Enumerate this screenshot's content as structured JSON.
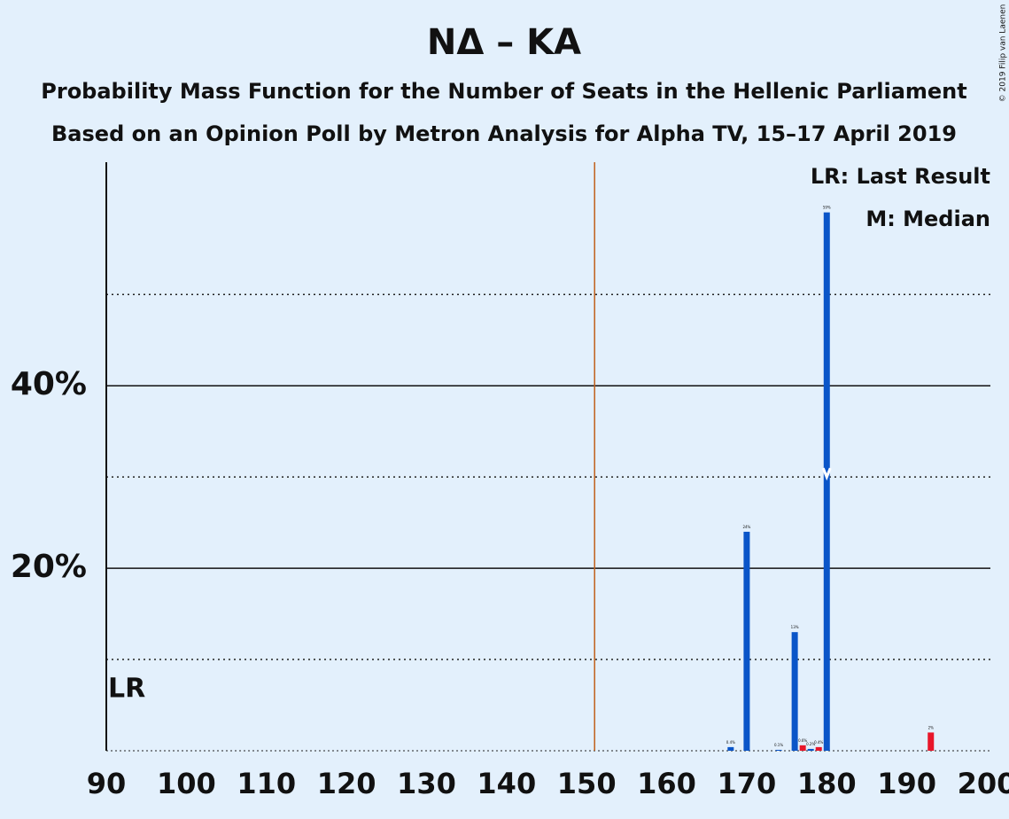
{
  "chart_data": {
    "type": "bar",
    "title": "NΔ – KA",
    "subtitle": "Probability Mass Function for the Number of Seats in the Hellenic Parliament",
    "subtitle2": "Based on an Opinion Poll by Metron Analysis for Alpha TV, 15–17 April 2019",
    "copyright": "© 2019 Filip van Laenen",
    "legend": [
      "LR: Last Result",
      "M: Median"
    ],
    "last_result_label": "LR",
    "last_result": 90,
    "median": 180,
    "majority": 151,
    "x": [
      168,
      170,
      174,
      176,
      177,
      178,
      179,
      180,
      193
    ],
    "values": [
      0.4,
      24,
      0.1,
      13,
      0.6,
      0.2,
      0.4,
      59,
      2
    ],
    "value_labels": [
      "0.4%",
      "24%",
      "0.1%",
      "13%",
      "0.6%",
      "0.2%",
      "0.4%",
      "59%",
      "2%"
    ],
    "colors": [
      "#0a55c8",
      "#0a55c8",
      "#0a55c8",
      "#0a55c8",
      "#e8162a",
      "#0a55c8",
      "#e8162a",
      "#0a55c8",
      "#e8162a"
    ],
    "xlim": [
      90,
      200
    ],
    "xticks": [
      90,
      100,
      110,
      120,
      130,
      140,
      150,
      160,
      170,
      180,
      190,
      200
    ],
    "ylim": [
      0,
      64.5
    ],
    "yticks": [
      {
        "value": 20,
        "label": "20%"
      },
      {
        "value": 40,
        "label": "40%"
      }
    ],
    "minor_yticks": [
      10,
      30,
      50
    ],
    "grid": true
  }
}
